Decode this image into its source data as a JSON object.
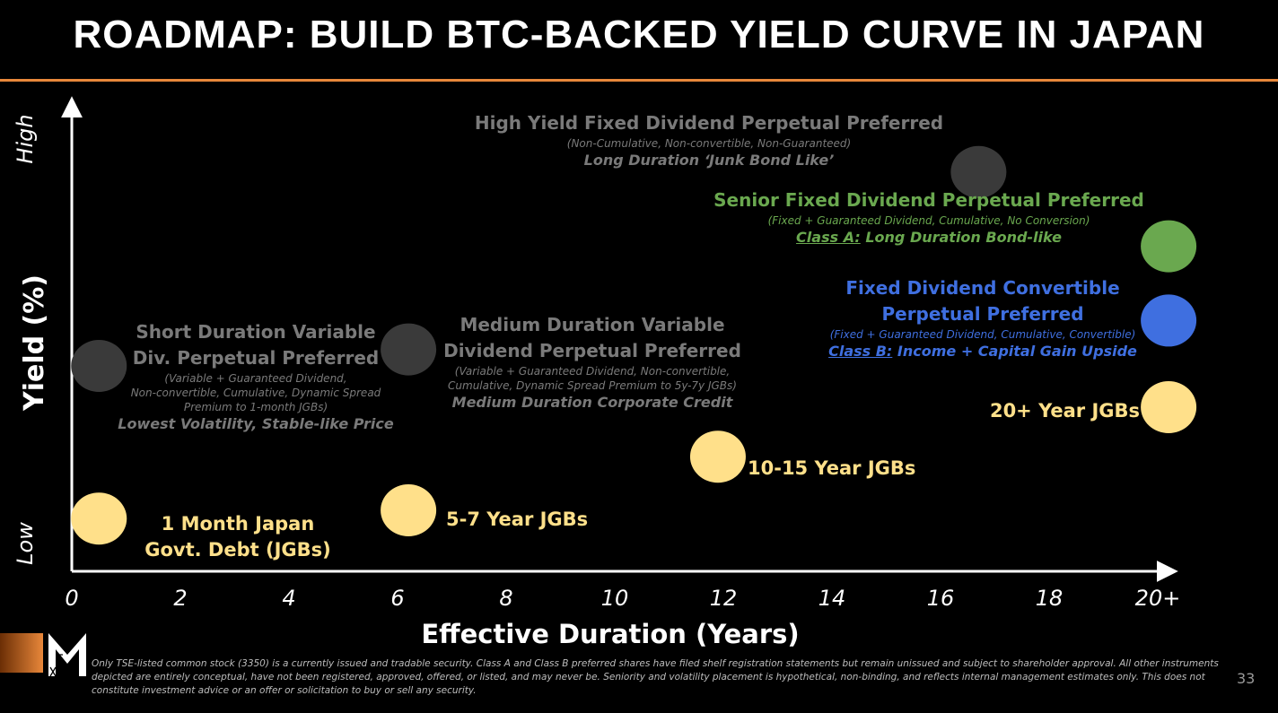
{
  "title": "ROADMAP: BUILD BTC-BACKED YIELD CURVE IN JAPAN",
  "colors": {
    "accent": "#e8873a",
    "jgb": "#ffe08a",
    "gray_dot": "#3a3a3a",
    "senior": "#6aa84f",
    "convertible": "#3f6fe0"
  },
  "chart_data": {
    "type": "scatter",
    "xlabel": "Effective Duration (Years)",
    "ylabel": "Yield (%)",
    "y_low_label": "Low",
    "y_high_label": "High",
    "x_ticks": [
      "0",
      "2",
      "4",
      "6",
      "8",
      "10",
      "12",
      "14",
      "16",
      "18",
      "20+"
    ],
    "xlim": [
      0,
      20
    ],
    "ylim": [
      0,
      1
    ],
    "grid": false,
    "points": [
      {
        "name": "1 Month Japan Govt. Debt (JGBs)",
        "x": 0.5,
        "y": 0.08,
        "color": "#ffe08a"
      },
      {
        "name": "5-7 Year JGBs",
        "x": 6.2,
        "y": 0.1,
        "color": "#ffe08a"
      },
      {
        "name": "10-15 Year JGBs",
        "x": 11.9,
        "y": 0.23,
        "color": "#ffe08a"
      },
      {
        "name": "20+ Year JGBs",
        "x": 20.2,
        "y": 0.35,
        "color": "#ffe08a"
      },
      {
        "name": "Short Duration Variable Div. Perpetual Preferred",
        "x": 0.5,
        "y": 0.45,
        "color": "#3a3a3a"
      },
      {
        "name": "Medium Duration Variable Dividend Perpetual Preferred",
        "x": 6.2,
        "y": 0.49,
        "color": "#3a3a3a"
      },
      {
        "name": "Fixed Dividend Convertible Perpetual Preferred",
        "x": 20.2,
        "y": 0.56,
        "color": "#3f6fe0"
      },
      {
        "name": "Senior Fixed Dividend Perpetual Preferred",
        "x": 20.2,
        "y": 0.74,
        "color": "#6aa84f"
      },
      {
        "name": "High Yield Fixed Dividend Perpetual Preferred",
        "x": 16.7,
        "y": 0.92,
        "color": "#3a3a3a"
      }
    ]
  },
  "annotations": {
    "high_yield": {
      "heading": "High Yield Fixed Dividend Perpetual Preferred",
      "sub": "(Non-Cumulative, Non-convertible, Non-Guaranteed)",
      "tag": "Long Duration ‘Junk Bond Like’"
    },
    "senior": {
      "heading": "Senior Fixed Dividend Perpetual Preferred",
      "sub": "(Fixed + Guaranteed Dividend, Cumulative, No Conversion)",
      "tag_prefix": "Class A:",
      "tag": " Long Duration Bond-like"
    },
    "convertible": {
      "heading_1": "Fixed Dividend Convertible",
      "heading_2": "Perpetual Preferred",
      "sub": "(Fixed + Guaranteed Dividend, Cumulative, Convertible)",
      "tag_prefix": "Class B:",
      "tag": " Income + Capital Gain Upside"
    },
    "short_duration": {
      "heading_1": "Short Duration Variable",
      "heading_2": "Div. Perpetual Preferred",
      "sub_1": "(Variable + Guaranteed Dividend,",
      "sub_2": "Non-convertible, Cumulative, Dynamic Spread",
      "sub_3": "Premium to 1-month JGBs)",
      "tag": "Lowest Volatility, Stable-like Price"
    },
    "medium_duration": {
      "heading_1": "Medium Duration Variable",
      "heading_2": "Dividend Perpetual Preferred",
      "sub_1": "(Variable + Guaranteed Dividend, Non-convertible,",
      "sub_2": "Cumulative, Dynamic Spread Premium to 5y-7y JGBs)",
      "tag": "Medium Duration Corporate Credit"
    },
    "jgb_20": "20+ Year JGBs",
    "jgb_10_15": "10-15 Year JGBs",
    "jgb_5_7": "5-7 Year JGBs",
    "jgb_1m_1": "1 Month Japan",
    "jgb_1m_2": "Govt. Debt (JGBs)"
  },
  "logo_letter": "M",
  "disclaimer": "Only TSE-listed common stock (3350) is a currently issued and tradable security. Class A and Class B preferred shares have filed shelf registration statements but remain unissued and subject to shareholder approval. All other instruments depicted are entirely conceptual, have not been registered, approved, offered, or listed, and may never be. Seniority and volatility placement is hypothetical, non-binding, and reflects internal management estimates only. This does not constitute investment advice or an offer or solicitation to buy or sell any security.",
  "page_number": "33"
}
